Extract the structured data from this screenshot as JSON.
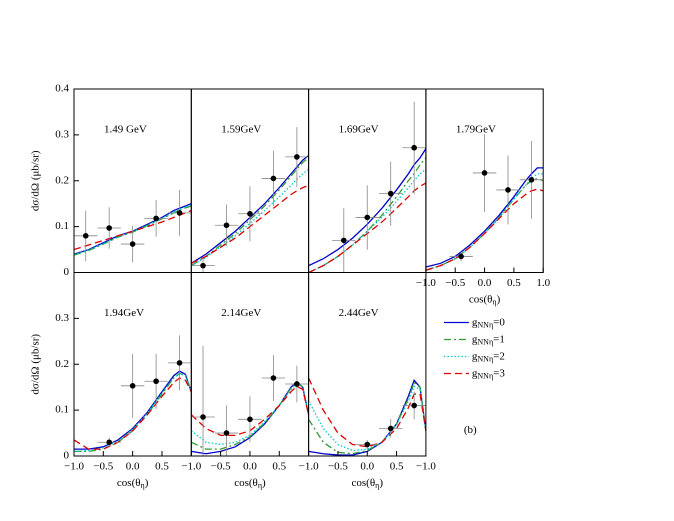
{
  "chart_data": [
    {
      "type": "line",
      "title": "1.49 GeV",
      "ylabel": "dσ/dΩ (μb/sr)",
      "xlim": [
        -1,
        1
      ],
      "ylim": [
        0,
        0.4
      ],
      "yticks": [
        0,
        0.1,
        0.2,
        0.3,
        0.4
      ],
      "x": [
        -1,
        -0.75,
        -0.5,
        -0.25,
        0,
        0.25,
        0.5,
        0.7,
        0.8,
        0.9,
        1
      ],
      "series": [
        {
          "color": "#0000cc",
          "dash": "solid",
          "values": [
            0.04,
            0.05,
            0.065,
            0.08,
            0.09,
            0.105,
            0.12,
            0.135,
            0.14,
            0.145,
            0.15
          ]
        },
        {
          "color": "#339933",
          "dash": "dashdot",
          "values": [
            0.038,
            0.048,
            0.062,
            0.077,
            0.088,
            0.102,
            0.117,
            0.13,
            0.136,
            0.141,
            0.145
          ]
        },
        {
          "color": "#00cccc",
          "dash": "dotted",
          "values": [
            0.039,
            0.049,
            0.063,
            0.078,
            0.089,
            0.103,
            0.118,
            0.132,
            0.138,
            0.143,
            0.147
          ]
        },
        {
          "color": "#dd0000",
          "dash": "dashed",
          "values": [
            0.05,
            0.06,
            0.07,
            0.08,
            0.09,
            0.1,
            0.11,
            0.12,
            0.125,
            0.13,
            0.135
          ]
        }
      ],
      "points": {
        "x": [
          -0.8,
          -0.4,
          0,
          0.4,
          0.8
        ],
        "y": [
          0.08,
          0.097,
          0.062,
          0.118,
          0.13
        ],
        "yerr": [
          0.055,
          0.045,
          0.04,
          0.04,
          0.05
        ],
        "xerr": [
          0.2,
          0.2,
          0.2,
          0.2,
          0.2
        ]
      }
    },
    {
      "type": "line",
      "title": "1.59GeV",
      "xlim": [
        -1,
        1
      ],
      "ylim": [
        0,
        0.4
      ],
      "x": [
        -1,
        -0.75,
        -0.5,
        -0.25,
        0,
        0.25,
        0.5,
        0.7,
        0.8,
        0.9,
        1
      ],
      "series": [
        {
          "color": "#0000cc",
          "dash": "solid",
          "values": [
            0.02,
            0.04,
            0.065,
            0.09,
            0.12,
            0.15,
            0.185,
            0.215,
            0.23,
            0.245,
            0.255
          ]
        },
        {
          "color": "#339933",
          "dash": "dashdot",
          "values": [
            0.015,
            0.035,
            0.06,
            0.085,
            0.115,
            0.145,
            0.18,
            0.21,
            0.225,
            0.24,
            0.25
          ]
        },
        {
          "color": "#00cccc",
          "dash": "dotted",
          "values": [
            0.015,
            0.033,
            0.056,
            0.08,
            0.107,
            0.135,
            0.165,
            0.19,
            0.203,
            0.215,
            0.225
          ]
        },
        {
          "color": "#dd0000",
          "dash": "dashed",
          "values": [
            0.02,
            0.035,
            0.055,
            0.075,
            0.1,
            0.125,
            0.15,
            0.17,
            0.178,
            0.185,
            0.19
          ]
        }
      ],
      "points": {
        "x": [
          -0.8,
          -0.4,
          0,
          0.4,
          0.8
        ],
        "y": [
          0.015,
          0.103,
          0.128,
          0.205,
          0.252
        ],
        "yerr": [
          0.015,
          0.045,
          0.06,
          0.06,
          0.065
        ],
        "xerr": [
          0.2,
          0.2,
          0.2,
          0.2,
          0.2
        ]
      }
    },
    {
      "type": "line",
      "title": "1.69GeV",
      "xlim": [
        -1,
        1
      ],
      "ylim": [
        0,
        0.4
      ],
      "x": [
        -1,
        -0.75,
        -0.5,
        -0.25,
        0,
        0.25,
        0.5,
        0.7,
        0.8,
        0.9,
        1
      ],
      "series": [
        {
          "color": "#0000cc",
          "dash": "solid",
          "values": [
            0.015,
            0.03,
            0.05,
            0.075,
            0.105,
            0.14,
            0.18,
            0.215,
            0.235,
            0.25,
            0.27
          ]
        },
        {
          "color": "#339933",
          "dash": "dashdot",
          "values": [
            0.0,
            0.015,
            0.035,
            0.06,
            0.09,
            0.125,
            0.165,
            0.2,
            0.215,
            0.235,
            0.25
          ]
        },
        {
          "color": "#00cccc",
          "dash": "dotted",
          "values": [
            0.0,
            0.015,
            0.035,
            0.06,
            0.09,
            0.12,
            0.155,
            0.185,
            0.2,
            0.215,
            0.225
          ]
        },
        {
          "color": "#dd0000",
          "dash": "dashed",
          "values": [
            0.0,
            0.015,
            0.035,
            0.06,
            0.085,
            0.11,
            0.14,
            0.165,
            0.178,
            0.188,
            0.195
          ]
        }
      ],
      "points": {
        "x": [
          -0.4,
          0,
          0.4,
          0.8
        ],
        "y": [
          0.07,
          0.12,
          0.172,
          0.272
        ],
        "yerr": [
          0.07,
          0.07,
          0.07,
          0.1
        ],
        "xerr": [
          0.2,
          0.2,
          0.2,
          0.2
        ]
      }
    },
    {
      "type": "line",
      "title": "1.79GeV",
      "xlabel": {
        "text": "cos(θ",
        "sub": "η",
        "close": ")"
      },
      "xlim": [
        -1,
        1
      ],
      "ylim": [
        0,
        0.4
      ],
      "xticks": [
        {
          "value": -1,
          "label": "−1.0"
        },
        {
          "value": -0.5,
          "label": "−0.5"
        },
        {
          "value": 0,
          "label": "0.0"
        },
        0.5,
        {
          "value": 1,
          "label": "1.0"
        }
      ],
      "x": [
        -1,
        -0.75,
        -0.5,
        -0.25,
        0,
        0.25,
        0.5,
        0.7,
        0.8,
        0.9,
        1
      ],
      "series": [
        {
          "color": "#0000cc",
          "dash": "solid",
          "values": [
            0.012,
            0.02,
            0.035,
            0.06,
            0.09,
            0.125,
            0.165,
            0.2,
            0.215,
            0.228,
            0.228
          ]
        },
        {
          "color": "#339933",
          "dash": "dashdot",
          "values": [
            0.005,
            0.015,
            0.03,
            0.055,
            0.085,
            0.12,
            0.16,
            0.19,
            0.2,
            0.205,
            0.2
          ]
        },
        {
          "color": "#00cccc",
          "dash": "dotted",
          "values": [
            0.005,
            0.015,
            0.03,
            0.055,
            0.085,
            0.12,
            0.16,
            0.19,
            0.205,
            0.215,
            0.215
          ]
        },
        {
          "color": "#dd0000",
          "dash": "dashed",
          "values": [
            0.005,
            0.015,
            0.03,
            0.055,
            0.085,
            0.118,
            0.15,
            0.17,
            0.178,
            0.182,
            0.178
          ]
        }
      ],
      "points": {
        "x": [
          -0.4,
          0,
          0.4,
          0.8
        ],
        "y": [
          0.035,
          0.217,
          0.18,
          0.202
        ],
        "yerr": [
          0.01,
          0.085,
          0.075,
          0.085
        ],
        "xerr": [
          0.2,
          0.2,
          0.2,
          0.2
        ]
      }
    },
    {
      "type": "line",
      "title": "1.94GeV",
      "ylabel": "dσ/dΩ (μb/sr)",
      "xlabel": {
        "text": "cos(θ",
        "sub": "η",
        "close": ")"
      },
      "xlim": [
        -1,
        1
      ],
      "ylim": [
        0,
        0.4
      ],
      "yticks": [
        0,
        0.1,
        0.2,
        0.3
      ],
      "xticks": [
        {
          "value": -1,
          "label": "−1.0"
        },
        {
          "value": -0.5,
          "label": "−0.5"
        },
        {
          "value": 0,
          "label": "0.0"
        },
        0.5
      ],
      "x": [
        -1,
        -0.75,
        -0.5,
        -0.25,
        0,
        0.25,
        0.5,
        0.7,
        0.8,
        0.9,
        1
      ],
      "series": [
        {
          "color": "#0000cc",
          "dash": "solid",
          "values": [
            0.015,
            0.015,
            0.02,
            0.035,
            0.06,
            0.095,
            0.14,
            0.175,
            0.185,
            0.178,
            0.14
          ]
        },
        {
          "color": "#339933",
          "dash": "dashdot",
          "values": [
            0.01,
            0.01,
            0.015,
            0.03,
            0.055,
            0.09,
            0.135,
            0.17,
            0.18,
            0.175,
            0.14
          ]
        },
        {
          "color": "#00cccc",
          "dash": "dotted",
          "values": [
            0.01,
            0.012,
            0.018,
            0.032,
            0.058,
            0.093,
            0.137,
            0.17,
            0.18,
            0.175,
            0.14
          ]
        },
        {
          "color": "#dd0000",
          "dash": "dashed",
          "values": [
            0.035,
            0.015,
            0.015,
            0.03,
            0.055,
            0.09,
            0.13,
            0.16,
            0.17,
            0.165,
            0.14
          ]
        }
      ],
      "points": {
        "x": [
          -0.4,
          0,
          0.4,
          0.8
        ],
        "y": [
          0.03,
          0.153,
          0.163,
          0.203
        ],
        "yerr": [
          0.01,
          0.07,
          0.06,
          0.06
        ],
        "xerr": [
          0.2,
          0.2,
          0.2,
          0.2
        ]
      }
    },
    {
      "type": "line",
      "title": "2.14GeV",
      "xlabel": {
        "text": "cos(θ",
        "sub": "η",
        "close": ")"
      },
      "xlim": [
        -1,
        1
      ],
      "ylim": [
        0,
        0.4
      ],
      "xticks": [
        {
          "value": -1,
          "label": "−1.0"
        },
        {
          "value": -0.5,
          "label": "−0.5"
        },
        {
          "value": 0,
          "label": "0.0"
        },
        0.5
      ],
      "x": [
        -1,
        -0.75,
        -0.5,
        -0.25,
        0,
        0.25,
        0.5,
        0.7,
        0.8,
        0.9,
        1
      ],
      "series": [
        {
          "color": "#0000cc",
          "dash": "solid",
          "values": [
            0.01,
            0.005,
            0.01,
            0.02,
            0.04,
            0.07,
            0.11,
            0.15,
            0.162,
            0.15,
            0.09
          ]
        },
        {
          "color": "#339933",
          "dash": "dashdot",
          "values": [
            0.03,
            0.015,
            0.015,
            0.025,
            0.042,
            0.072,
            0.11,
            0.148,
            0.16,
            0.15,
            0.09
          ]
        },
        {
          "color": "#00cccc",
          "dash": "dotted",
          "values": [
            0.055,
            0.03,
            0.025,
            0.03,
            0.045,
            0.075,
            0.11,
            0.145,
            0.158,
            0.148,
            0.09
          ]
        },
        {
          "color": "#dd0000",
          "dash": "dashed",
          "values": [
            0.09,
            0.06,
            0.045,
            0.045,
            0.055,
            0.08,
            0.11,
            0.14,
            0.152,
            0.145,
            0.09
          ]
        }
      ],
      "points": {
        "x": [
          -0.8,
          -0.4,
          0,
          0.4,
          0.8
        ],
        "y": [
          0.085,
          0.05,
          0.08,
          0.17,
          0.157
        ],
        "yerr": [
          0.155,
          0.06,
          0.05,
          0.05,
          0.04
        ],
        "xerr": [
          0.2,
          0.2,
          0.2,
          0.2,
          0.2
        ]
      }
    },
    {
      "type": "line",
      "title": "2.44GeV",
      "xlabel": {
        "text": "cos(θ",
        "sub": "η",
        "close": ")"
      },
      "xlim": [
        -1,
        1
      ],
      "ylim": [
        0,
        0.4
      ],
      "xticks": [
        {
          "value": -1,
          "label": "−1.0"
        },
        {
          "value": -0.5,
          "label": "−0.5"
        },
        {
          "value": 0,
          "label": "0.0"
        },
        0.5
      ],
      "x": [
        -1,
        -0.75,
        -0.5,
        -0.25,
        0,
        0.25,
        0.5,
        0.7,
        0.8,
        0.9,
        1
      ],
      "series": [
        {
          "color": "#0000cc",
          "dash": "solid",
          "values": [
            0.01,
            0.005,
            0.002,
            0.002,
            0.01,
            0.03,
            0.07,
            0.13,
            0.165,
            0.15,
            0.055
          ]
        },
        {
          "color": "#339933",
          "dash": "dashdot",
          "values": [
            0.08,
            0.03,
            0.008,
            0.005,
            0.012,
            0.03,
            0.07,
            0.125,
            0.16,
            0.15,
            0.055
          ]
        },
        {
          "color": "#00cccc",
          "dash": "dotted",
          "values": [
            0.12,
            0.06,
            0.025,
            0.012,
            0.015,
            0.03,
            0.068,
            0.12,
            0.152,
            0.145,
            0.055
          ]
        },
        {
          "color": "#dd0000",
          "dash": "dashed",
          "values": [
            0.17,
            0.1,
            0.05,
            0.025,
            0.02,
            0.03,
            0.06,
            0.105,
            0.135,
            0.135,
            0.055
          ]
        }
      ],
      "points": {
        "x": [
          0,
          0.4,
          0.8
        ],
        "y": [
          0.025,
          0.06,
          0.11
        ],
        "yerr": [
          0.01,
          0.02,
          0.03
        ],
        "xerr": [
          0.2,
          0.2,
          0.2
        ]
      }
    },
    {
      "type": "legend",
      "annotation": "(b)",
      "xlim": [
        -1,
        1
      ],
      "xticks": [
        {
          "value": -1,
          "label": "−1.0"
        }
      ],
      "legend": [
        {
          "symbol": "g",
          "sub": "NNη",
          "suffix": "=0",
          "color": "#0000cc",
          "dash": "solid"
        },
        {
          "symbol": "g",
          "sub": "NNη",
          "suffix": "=1",
          "color": "#339933",
          "dash": "dashdot"
        },
        {
          "symbol": "g",
          "sub": "NNη",
          "suffix": "=2",
          "color": "#00cccc",
          "dash": "dotted"
        },
        {
          "symbol": "g",
          "sub": "NNη",
          "suffix": "=3",
          "color": "#dd0000",
          "dash": "dashed"
        }
      ]
    }
  ]
}
